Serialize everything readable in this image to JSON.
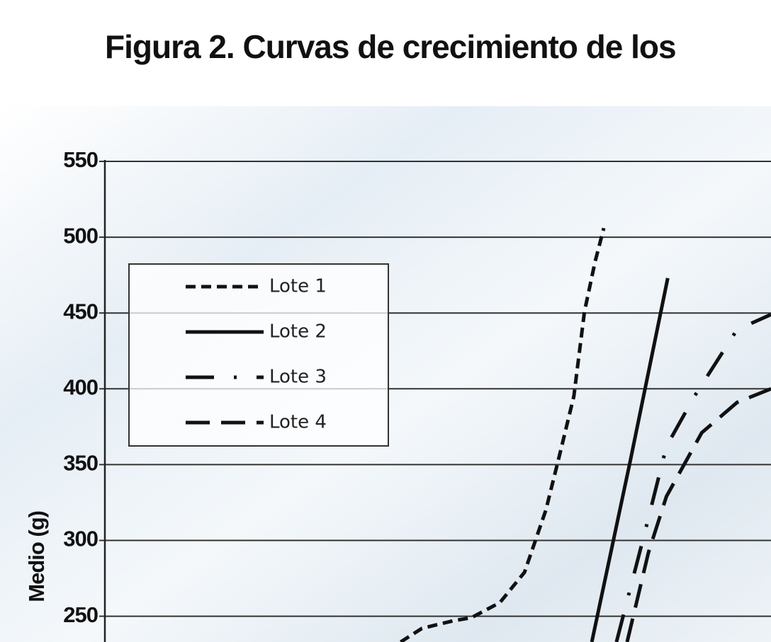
{
  "chart_data": {
    "type": "line",
    "title": "Figura 2. Curvas de crecimiento de los",
    "y_label": "Medio (g)",
    "xlim": [
      0,
      100
    ],
    "ylim": [
      233,
      550
    ],
    "yticks": [
      250,
      300,
      350,
      400,
      450,
      500,
      550
    ],
    "grid": true,
    "legend": "upper left",
    "series": [
      {
        "name": "Lote 1",
        "color": "#111111",
        "style": "dashed",
        "x": [
          44.4,
          47.6,
          52.3,
          55.0,
          59.3,
          63.0,
          66.2,
          68.3,
          70.4,
          72.0,
          73.6,
          74.9
        ],
        "values": [
          233,
          242,
          247,
          249,
          259,
          279,
          320,
          357,
          395,
          451,
          484,
          506
        ]
      },
      {
        "name": "Lote 2",
        "color": "#111111",
        "style": "solid",
        "x": [
          73.1,
          78.9,
          84.5
        ],
        "values": [
          233,
          353,
          473
        ]
      },
      {
        "name": "Lote 3",
        "color": "#111111",
        "style": "dashdot",
        "x": [
          76.8,
          81.1,
          84.3,
          88.5,
          94.9,
          100
        ],
        "values": [
          233,
          306,
          362,
          395,
          439,
          449
        ]
      },
      {
        "name": "Lote 4",
        "color": "#111111",
        "style": "longdash",
        "x": [
          78.4,
          81.6,
          84.3,
          89.6,
          94.9,
          100
        ],
        "values": [
          233,
          292,
          329,
          371,
          391,
          400
        ]
      }
    ]
  }
}
